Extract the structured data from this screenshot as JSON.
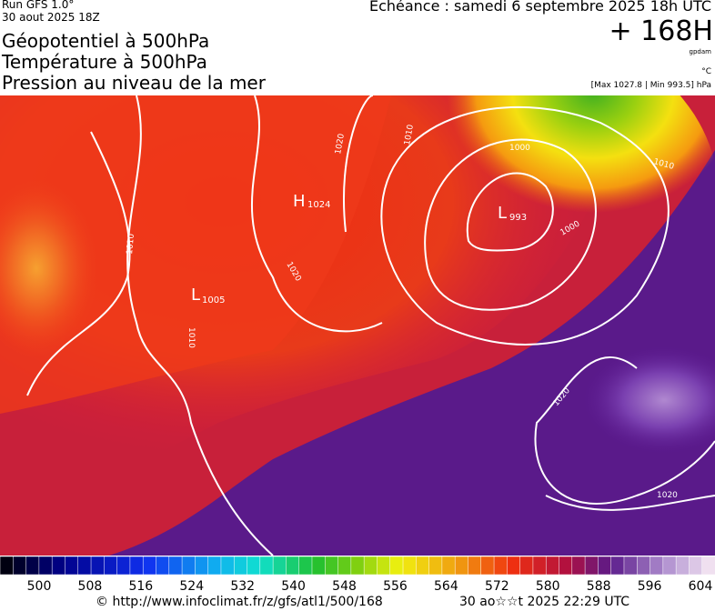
{
  "header": {
    "run": "Run GFS 1.0°",
    "run_date": "30 aout 2025 18Z",
    "titles": [
      "Géopotentiel à 500hPa",
      "Température à 500hPa",
      "Pression au niveau de la mer"
    ],
    "echeance": "Echéance : samedi 6 septembre 2025 18h UTC",
    "lead": "+ 168H",
    "unit": "gpdam",
    "temp_unit": "°C",
    "extremes": "[Max 1027.8 | Min 993.5] hPa"
  },
  "map": {
    "centers": [
      {
        "letter": "H",
        "value": "1024"
      },
      {
        "letter": "L",
        "value": "993"
      },
      {
        "letter": "L",
        "value": "1005"
      }
    ],
    "isobar_labels": [
      "1000",
      "1000",
      "1010",
      "1010",
      "1010",
      "1010",
      "1020",
      "1020",
      "1020",
      "1020"
    ]
  },
  "colorbar": {
    "labels": [
      500,
      508,
      516,
      524,
      532,
      540,
      548,
      556,
      564,
      572,
      580,
      588,
      596,
      604
    ]
  },
  "footer": {
    "source": "© http://www.infoclimat.fr/z/gfs/atl1/500/168",
    "generated": "30 ao☆☆t 2025 22:29 UTC"
  }
}
